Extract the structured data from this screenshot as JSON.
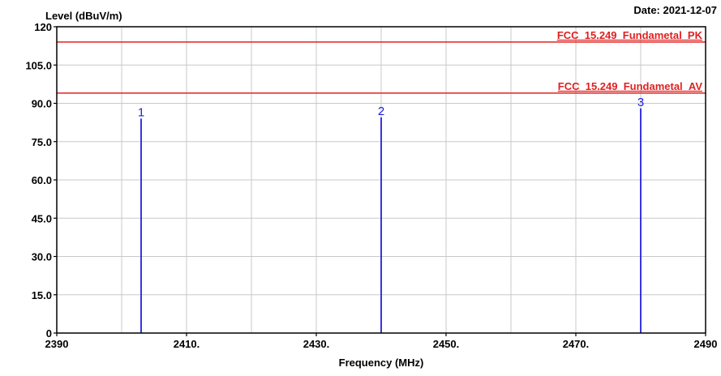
{
  "chart_data": {
    "type": "bar",
    "ylabel": "Level (dBuV/m)",
    "xlabel": "Frequency (MHz)",
    "date_label": "Date: 2021-12-07",
    "xlim": [
      2390,
      2490
    ],
    "ylim": [
      0,
      120
    ],
    "grid": true,
    "x_ticks": [
      {
        "value": 2390,
        "label": "2390"
      },
      {
        "value": 2410,
        "label": "2410."
      },
      {
        "value": 2430,
        "label": "2430."
      },
      {
        "value": 2450,
        "label": "2450."
      },
      {
        "value": 2470,
        "label": "2470."
      },
      {
        "value": 2490,
        "label": "2490"
      }
    ],
    "x_gridlines": [
      2400,
      2410,
      2420,
      2430,
      2440,
      2450,
      2460,
      2470,
      2480
    ],
    "y_ticks": [
      {
        "value": 0,
        "label": "0"
      },
      {
        "value": 15,
        "label": "15.0"
      },
      {
        "value": 30,
        "label": "30.0"
      },
      {
        "value": 45,
        "label": "45.0"
      },
      {
        "value": 60,
        "label": "60.0"
      },
      {
        "value": 75,
        "label": "75.0"
      },
      {
        "value": 90,
        "label": "90.0"
      },
      {
        "value": 105,
        "label": "105.0"
      },
      {
        "value": 120,
        "label": "120"
      }
    ],
    "limit_lines": [
      {
        "label": "FCC_15.249_Fundametal_PK",
        "value": 114,
        "color": "#e02020"
      },
      {
        "label": "FCC_15.249_Fundametal_AV",
        "value": 94,
        "color": "#e02020"
      }
    ],
    "markers": [
      {
        "label": "1",
        "x": 2403,
        "y": 84
      },
      {
        "label": "2",
        "x": 2440,
        "y": 84.5
      },
      {
        "label": "3",
        "x": 2480,
        "y": 88
      }
    ],
    "colors": {
      "marker": "#2020e0",
      "limit": "#e02020",
      "grid": "#c8c8c8",
      "axis": "#000000",
      "text": "#000000"
    }
  }
}
